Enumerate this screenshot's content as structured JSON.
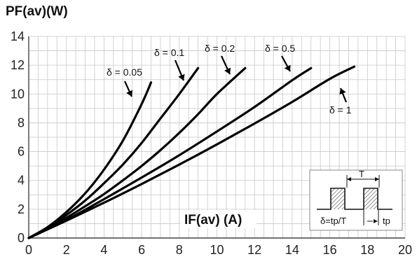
{
  "chart_data": {
    "type": "line",
    "ylabel": "PF(av)(W)",
    "xlabel": "IF(av) (A)",
    "xlim": [
      0,
      20
    ],
    "ylim": [
      0,
      14
    ],
    "xticks": [
      0,
      2,
      4,
      6,
      8,
      10,
      12,
      14,
      16,
      18,
      20
    ],
    "yticks": [
      0,
      2,
      4,
      6,
      8,
      10,
      12,
      14
    ],
    "grid": true,
    "series": [
      {
        "name": "δ = 0.05",
        "x": [
          0,
          1,
          2,
          3,
          4,
          5,
          6,
          6.5
        ],
        "y": [
          0,
          0.75,
          1.8,
          3.1,
          4.75,
          6.75,
          9.3,
          10.8
        ]
      },
      {
        "name": "δ = 0.1",
        "x": [
          0,
          1,
          2,
          3,
          4,
          5,
          6,
          7,
          8,
          9
        ],
        "y": [
          0,
          0.7,
          1.6,
          2.6,
          3.8,
          5.1,
          6.6,
          8.3,
          10.0,
          11.8
        ]
      },
      {
        "name": "δ = 0.2",
        "x": [
          0,
          1,
          2,
          3,
          4,
          5,
          6,
          7,
          8,
          9,
          10,
          11.5
        ],
        "y": [
          0,
          0.65,
          1.4,
          2.2,
          3.05,
          4.0,
          5.0,
          6.1,
          7.3,
          8.6,
          10.0,
          11.8
        ]
      },
      {
        "name": "δ = 0.5",
        "x": [
          0,
          2,
          4,
          6,
          8,
          10,
          12,
          14,
          15
        ],
        "y": [
          0,
          1.25,
          2.7,
          4.2,
          5.75,
          7.4,
          9.1,
          10.95,
          11.8
        ]
      },
      {
        "name": "δ = 1",
        "x": [
          0,
          2,
          4,
          6,
          8,
          10,
          12,
          14,
          16,
          17.3
        ],
        "y": [
          0,
          1.2,
          2.45,
          3.75,
          5.1,
          6.5,
          7.95,
          9.45,
          11.05,
          11.9
        ]
      }
    ],
    "inset": {
      "period_label": "T",
      "duty_label": "δ=tp/T",
      "pulse_label": "tp"
    }
  }
}
